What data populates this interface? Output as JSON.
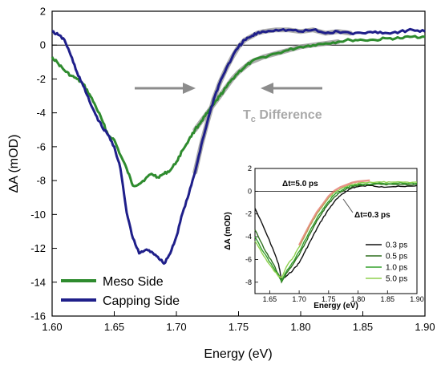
{
  "chart_data": {
    "main": {
      "type": "line",
      "xlabel": "Energy (eV)",
      "ylabel": "ΔA (mOD)",
      "xlim": [
        1.6,
        1.9
      ],
      "ylim": [
        -16,
        2
      ],
      "xticks": [
        "1.60",
        "1.65",
        "1.70",
        "1.75",
        "1.80",
        "1.85",
        "1.90"
      ],
      "yticks": [
        "2",
        "0",
        "-2",
        "-4",
        "-6",
        "-8",
        "-10",
        "-12",
        "-14",
        "-16"
      ],
      "legend_position": "bottom-left",
      "annotation": {
        "text_main": "T",
        "text_sub": "c",
        "text_rest": " Difference",
        "color": "#a9a9a9"
      },
      "series": [
        {
          "name": "Meso Side",
          "color": "#2e8b2e",
          "x": [
            1.6,
            1.605,
            1.61,
            1.615,
            1.62,
            1.625,
            1.63,
            1.635,
            1.64,
            1.645,
            1.65,
            1.655,
            1.66,
            1.665,
            1.67,
            1.675,
            1.68,
            1.685,
            1.69,
            1.695,
            1.7,
            1.705,
            1.71,
            1.715,
            1.72,
            1.725,
            1.73,
            1.735,
            1.74,
            1.745,
            1.75,
            1.755,
            1.76,
            1.77,
            1.78,
            1.79,
            1.8,
            1.81,
            1.82,
            1.83,
            1.84,
            1.85,
            1.86,
            1.87,
            1.88,
            1.89,
            1.9
          ],
          "y": [
            -0.7,
            -1.1,
            -1.5,
            -1.8,
            -2.0,
            -2.3,
            -2.9,
            -3.6,
            -4.4,
            -5.3,
            -5.6,
            -6.5,
            -7.3,
            -8.3,
            -8.2,
            -7.9,
            -7.6,
            -7.8,
            -7.6,
            -7.4,
            -6.9,
            -6.2,
            -5.6,
            -5.0,
            -4.5,
            -4.0,
            -3.5,
            -3.0,
            -2.5,
            -2.0,
            -1.6,
            -1.3,
            -1.0,
            -0.7,
            -0.5,
            -0.3,
            -0.1,
            0.0,
            0.1,
            0.2,
            0.3,
            0.3,
            0.3,
            0.4,
            0.4,
            0.5,
            0.5
          ]
        },
        {
          "name": "Capping Side",
          "color": "#1f1f8a",
          "x": [
            1.6,
            1.605,
            1.61,
            1.615,
            1.62,
            1.625,
            1.63,
            1.635,
            1.64,
            1.645,
            1.65,
            1.655,
            1.66,
            1.665,
            1.67,
            1.675,
            1.68,
            1.685,
            1.69,
            1.695,
            1.7,
            1.705,
            1.71,
            1.715,
            1.72,
            1.725,
            1.73,
            1.735,
            1.74,
            1.745,
            1.75,
            1.755,
            1.76,
            1.765,
            1.77,
            1.78,
            1.79,
            1.8,
            1.81,
            1.82,
            1.83,
            1.84,
            1.85,
            1.86,
            1.87,
            1.88,
            1.89,
            1.9
          ],
          "y": [
            0.8,
            0.6,
            0.3,
            -0.6,
            -1.6,
            -2.4,
            -3.3,
            -4.1,
            -4.8,
            -5.3,
            -6.0,
            -7.3,
            -9.9,
            -11.4,
            -12.3,
            -12.1,
            -12.2,
            -12.5,
            -12.9,
            -12.3,
            -11.3,
            -9.9,
            -8.8,
            -7.5,
            -5.9,
            -4.5,
            -3.2,
            -2.2,
            -1.4,
            -0.7,
            -0.1,
            0.3,
            0.5,
            0.7,
            0.8,
            0.9,
            0.9,
            0.8,
            0.9,
            0.7,
            0.8,
            0.7,
            0.7,
            0.8,
            0.7,
            0.8,
            0.9,
            0.8
          ]
        }
      ]
    },
    "inset": {
      "type": "line",
      "xlabel": "Energy (eV)",
      "ylabel": "ΔA (mOD)",
      "xlim": [
        1.625,
        1.9
      ],
      "ylim": [
        -9,
        2
      ],
      "xticks": [
        "1.65",
        "1.70",
        "1.75",
        "1.80",
        "1.85",
        "1.90"
      ],
      "yticks": [
        "2",
        "0",
        "-2",
        "-4",
        "-6",
        "-8"
      ],
      "legend_position": "bottom-right",
      "annotations": [
        {
          "text": "Δt=5.0 ps"
        },
        {
          "text": "Δt=0.3 ps"
        }
      ],
      "series": [
        {
          "name": "0.3 ps",
          "color": "#111111",
          "x": [
            1.625,
            1.64,
            1.655,
            1.665,
            1.67,
            1.68,
            1.69,
            1.7,
            1.71,
            1.72,
            1.73,
            1.74,
            1.75,
            1.76,
            1.77,
            1.78,
            1.79,
            1.8,
            1.82,
            1.84,
            1.86,
            1.88,
            1.9
          ],
          "y": [
            -1.5,
            -3.2,
            -5.0,
            -6.4,
            -7.8,
            -7.4,
            -6.9,
            -6.3,
            -5.3,
            -4.3,
            -3.3,
            -2.4,
            -1.6,
            -0.9,
            -0.4,
            0.0,
            0.3,
            0.4,
            0.5,
            0.4,
            0.4,
            0.4,
            0.5
          ]
        },
        {
          "name": "0.5 ps",
          "color": "#2f6f1f",
          "x": [
            1.625,
            1.64,
            1.655,
            1.665,
            1.67,
            1.68,
            1.69,
            1.7,
            1.71,
            1.72,
            1.73,
            1.74,
            1.75,
            1.76,
            1.77,
            1.78,
            1.79,
            1.8,
            1.82,
            1.84,
            1.86,
            1.88,
            1.9
          ],
          "y": [
            -3.4,
            -5.0,
            -6.3,
            -7.3,
            -8.0,
            -7.1,
            -6.4,
            -5.6,
            -4.6,
            -3.6,
            -2.6,
            -1.8,
            -1.1,
            -0.5,
            -0.1,
            0.2,
            0.4,
            0.5,
            0.6,
            0.6,
            0.6,
            0.6,
            0.6
          ]
        },
        {
          "name": "1.0 ps",
          "color": "#33a02c",
          "x": [
            1.625,
            1.64,
            1.655,
            1.665,
            1.67,
            1.68,
            1.69,
            1.7,
            1.71,
            1.72,
            1.73,
            1.74,
            1.75,
            1.76,
            1.77,
            1.78,
            1.79,
            1.8,
            1.82,
            1.84,
            1.86,
            1.88,
            1.9
          ],
          "y": [
            -4.0,
            -5.4,
            -6.6,
            -7.4,
            -7.9,
            -6.9,
            -6.2,
            -5.3,
            -4.3,
            -3.3,
            -2.4,
            -1.6,
            -0.9,
            -0.3,
            0.0,
            0.3,
            0.5,
            0.6,
            0.6,
            0.7,
            0.7,
            0.7,
            0.7
          ]
        },
        {
          "name": "5.0 ps",
          "color": "#8fd14f",
          "x": [
            1.625,
            1.64,
            1.655,
            1.665,
            1.67,
            1.68,
            1.69,
            1.7,
            1.71,
            1.72,
            1.73,
            1.74,
            1.75,
            1.76,
            1.77,
            1.78,
            1.79,
            1.8,
            1.82,
            1.84,
            1.86,
            1.88,
            1.9
          ],
          "y": [
            -4.4,
            -5.7,
            -6.8,
            -7.5,
            -7.6,
            -6.5,
            -5.8,
            -4.9,
            -3.9,
            -2.9,
            -2.0,
            -1.3,
            -0.6,
            -0.1,
            0.2,
            0.4,
            0.6,
            0.7,
            0.8,
            0.8,
            0.8,
            0.8,
            0.8
          ]
        }
      ]
    }
  }
}
